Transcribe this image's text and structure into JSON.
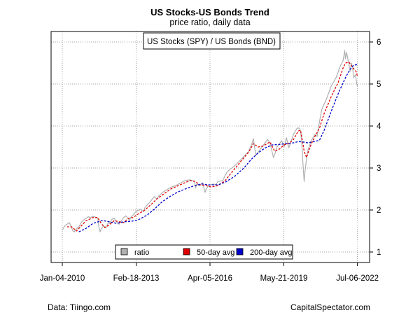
{
  "header": {
    "title": "US Stocks-US Bonds Trend",
    "subtitle": "price ratio, daily data"
  },
  "footer": {
    "source": "Data: Tiingo.com",
    "credit": "CapitalSpectator.com"
  },
  "colors": {
    "ratio": "#b0b0b0",
    "ma50": "#e00000",
    "ma200": "#0000cc",
    "grid": "#a0a0a0"
  },
  "chart_data": {
    "type": "line",
    "title": "US Stocks-US Bonds Trend",
    "subtitle": "price ratio, daily data",
    "series_label": "US Stocks (SPY) / US Bonds (BND)",
    "ylim": [
      0.75,
      6.25
    ],
    "y_ticks": [
      1,
      2,
      3,
      4,
      5,
      6
    ],
    "y_axis_side": "right",
    "xlim": [
      2010.0,
      2022.52
    ],
    "x_ticks": [
      {
        "pos": 2010.0,
        "label": "Jan-04-2010"
      },
      {
        "pos": 2013.13,
        "label": "Feb-18-2013"
      },
      {
        "pos": 2016.26,
        "label": "Apr-05-2016"
      },
      {
        "pos": 2019.39,
        "label": "May-21-2019"
      },
      {
        "pos": 2022.51,
        "label": "Jul-06-2022"
      }
    ],
    "grid": true,
    "legend_placement": "bottom-center",
    "series": [
      {
        "name": "ratio",
        "style": "solid",
        "x": [
          2010.0,
          2010.1,
          2010.2,
          2010.3,
          2010.35,
          2010.45,
          2010.5,
          2010.6,
          2010.7,
          2010.8,
          2010.9,
          2011.0,
          2011.1,
          2011.2,
          2011.3,
          2011.4,
          2011.5,
          2011.55,
          2011.6,
          2011.65,
          2011.75,
          2011.85,
          2011.95,
          2012.0,
          2012.1,
          2012.2,
          2012.3,
          2012.4,
          2012.45,
          2012.6,
          2012.7,
          2012.85,
          2012.9,
          2013.0,
          2013.1,
          2013.3,
          2013.45,
          2013.5,
          2013.7,
          2013.9,
          2014.0,
          2014.1,
          2014.3,
          2014.6,
          2014.8,
          2015.0,
          2015.2,
          2015.4,
          2015.6,
          2015.65,
          2015.7,
          2015.8,
          2015.95,
          2016.05,
          2016.1,
          2016.2,
          2016.4,
          2016.5,
          2016.6,
          2016.8,
          2016.9,
          2017.0,
          2017.3,
          2017.6,
          2017.9,
          2018.05,
          2018.1,
          2018.2,
          2018.4,
          2018.7,
          2018.8,
          2018.95,
          2019.0,
          2019.1,
          2019.3,
          2019.4,
          2019.5,
          2019.6,
          2019.8,
          2019.95,
          2020.05,
          2020.1,
          2020.15,
          2020.2,
          2020.25,
          2020.3,
          2020.4,
          2020.55,
          2020.7,
          2020.8,
          2020.9,
          2021.0,
          2021.2,
          2021.4,
          2021.6,
          2021.8,
          2021.9,
          2021.97,
          2022.0,
          2022.05,
          2022.12,
          2022.2,
          2022.25,
          2022.3,
          2022.35,
          2022.42,
          2022.48,
          2022.51
        ],
        "values": [
          1.52,
          1.62,
          1.66,
          1.7,
          1.64,
          1.5,
          1.48,
          1.55,
          1.6,
          1.7,
          1.76,
          1.8,
          1.84,
          1.82,
          1.85,
          1.83,
          1.8,
          1.6,
          1.48,
          1.55,
          1.62,
          1.58,
          1.7,
          1.68,
          1.78,
          1.8,
          1.72,
          1.66,
          1.7,
          1.82,
          1.86,
          1.75,
          1.82,
          1.88,
          1.95,
          2.02,
          1.96,
          2.06,
          2.18,
          2.32,
          2.26,
          2.34,
          2.44,
          2.54,
          2.58,
          2.64,
          2.7,
          2.72,
          2.68,
          2.52,
          2.62,
          2.58,
          2.65,
          2.42,
          2.5,
          2.58,
          2.62,
          2.6,
          2.68,
          2.7,
          2.82,
          2.92,
          3.05,
          3.22,
          3.4,
          3.6,
          3.7,
          3.3,
          3.45,
          3.68,
          3.6,
          3.25,
          3.32,
          3.5,
          3.65,
          3.5,
          3.72,
          3.48,
          3.8,
          3.95,
          3.95,
          3.88,
          3.6,
          3.1,
          2.68,
          3.0,
          3.4,
          3.65,
          3.8,
          3.75,
          4.1,
          4.4,
          4.65,
          4.95,
          5.15,
          5.45,
          5.55,
          5.8,
          5.6,
          5.75,
          5.55,
          5.3,
          5.5,
          5.4,
          5.15,
          5.22,
          5.0,
          4.95
        ]
      },
      {
        "name": "50-day avg",
        "style": "dashed",
        "x": [
          2010.2,
          2010.4,
          2010.6,
          2010.8,
          2011.0,
          2011.3,
          2011.5,
          2011.65,
          2011.8,
          2012.0,
          2012.2,
          2012.4,
          2012.6,
          2012.8,
          2013.0,
          2013.2,
          2013.5,
          2013.8,
          2014.0,
          2014.3,
          2014.6,
          2015.0,
          2015.4,
          2015.65,
          2015.8,
          2016.1,
          2016.3,
          2016.6,
          2016.9,
          2017.3,
          2017.6,
          2017.9,
          2018.1,
          2018.3,
          2018.5,
          2018.8,
          2019.0,
          2019.2,
          2019.4,
          2019.6,
          2019.8,
          2020.0,
          2020.1,
          2020.25,
          2020.35,
          2020.5,
          2020.7,
          2020.9,
          2021.1,
          2021.4,
          2021.7,
          2021.9,
          2022.0,
          2022.15,
          2022.3,
          2022.45,
          2022.51
        ],
        "values": [
          1.6,
          1.6,
          1.5,
          1.62,
          1.74,
          1.82,
          1.82,
          1.68,
          1.58,
          1.65,
          1.75,
          1.72,
          1.7,
          1.8,
          1.82,
          1.9,
          2.0,
          2.15,
          2.26,
          2.38,
          2.5,
          2.6,
          2.7,
          2.68,
          2.6,
          2.58,
          2.55,
          2.58,
          2.7,
          2.98,
          3.18,
          3.38,
          3.58,
          3.5,
          3.52,
          3.62,
          3.4,
          3.45,
          3.55,
          3.58,
          3.68,
          3.88,
          3.9,
          3.4,
          3.25,
          3.5,
          3.75,
          3.95,
          4.3,
          4.7,
          5.05,
          5.38,
          5.5,
          5.52,
          5.4,
          5.3,
          5.18
        ]
      },
      {
        "name": "200-day avg",
        "style": "dashed",
        "x": [
          2010.7,
          2011.0,
          2011.3,
          2011.7,
          2012.0,
          2012.3,
          2012.6,
          2012.9,
          2013.2,
          2013.6,
          2013.9,
          2014.2,
          2014.5,
          2014.9,
          2015.3,
          2015.6,
          2015.9,
          2016.2,
          2016.6,
          2016.9,
          2017.3,
          2017.7,
          2018.0,
          2018.3,
          2018.6,
          2018.9,
          2019.2,
          2019.5,
          2019.8,
          2020.0,
          2020.2,
          2020.4,
          2020.6,
          2020.75,
          2020.9,
          2021.1,
          2021.4,
          2021.7,
          2022.0,
          2022.2,
          2022.35,
          2022.5
        ],
        "values": [
          1.48,
          1.56,
          1.68,
          1.75,
          1.72,
          1.68,
          1.72,
          1.73,
          1.76,
          1.88,
          2.02,
          2.18,
          2.3,
          2.43,
          2.52,
          2.58,
          2.62,
          2.6,
          2.6,
          2.66,
          2.8,
          3.0,
          3.2,
          3.36,
          3.48,
          3.55,
          3.56,
          3.58,
          3.6,
          3.63,
          3.62,
          3.6,
          3.62,
          3.64,
          3.66,
          3.9,
          4.35,
          4.78,
          5.15,
          5.35,
          5.45,
          5.46
        ]
      }
    ]
  }
}
